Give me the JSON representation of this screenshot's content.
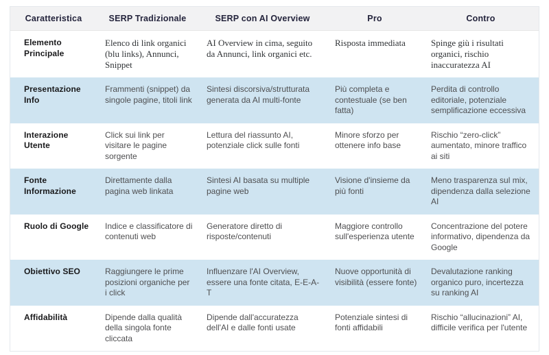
{
  "colors": {
    "header_bg": "#f2f2f3",
    "highlight_row_bg": "#cfe4f1",
    "header_text": "#24243c",
    "body_text": "#4e4e50",
    "label_text": "#19191b",
    "table_border": "#e4e8ec"
  },
  "table": {
    "headers": [
      "Caratteristica",
      "SERP Tradizionale",
      "SERP con AI Overview",
      "Pro",
      "Contro"
    ],
    "rows": [
      {
        "feature": "Elemento Principale",
        "serp_tradizionale": "Elenco di link organici (blu links), Annunci, Snippet",
        "serp_ai_overview": "AI Overview in cima, seguito da Annunci, link organici etc.",
        "pro": "Risposta immediata",
        "contro": "Spinge giù i risultati organici, rischio inaccuratezza AI"
      },
      {
        "feature": "Presentazione Info",
        "serp_tradizionale": "Frammenti (snippet) da singole pagine, titoli link",
        "serp_ai_overview": "Sintesi discorsiva/strutturata generata da AI multi-fonte",
        "pro": "Più completa e contestuale (se ben fatta)",
        "contro": "Perdita di controllo editoriale, potenziale semplificazione eccessiva"
      },
      {
        "feature": "Interazione Utente",
        "serp_tradizionale": "Click sui link per visitare le pagine sorgente",
        "serp_ai_overview": "Lettura del riassunto AI, potenziale click sulle fonti",
        "pro": "Minore sforzo per ottenere info base",
        "contro": "Rischio “zero-click” aumentato, minore traffico ai siti"
      },
      {
        "feature": "Fonte Informazione",
        "serp_tradizionale": "Direttamente dalla pagina web linkata",
        "serp_ai_overview": "Sintesi AI basata su multiple pagine web",
        "pro": "Visione d'insieme da più fonti",
        "contro": "Meno trasparenza sul mix, dipendenza dalla selezione AI"
      },
      {
        "feature": "Ruolo di Google",
        "serp_tradizionale": "Indice e classificatore di contenuti web",
        "serp_ai_overview": "Generatore diretto di risposte/contenuti",
        "pro": "Maggiore controllo sull'esperienza utente",
        "contro": "Concentrazione del potere informativo, dipendenza da Google"
      },
      {
        "feature": "Obiettivo SEO",
        "serp_tradizionale": "Raggiungere le prime posizioni organiche per i click",
        "serp_ai_overview": "Influenzare l'AI Overview, essere una fonte citata, E-E-A-T",
        "pro": "Nuove opportunità di visibilità (essere fonte)",
        "contro": "Devalutazione ranking organico puro, incertezza su ranking AI"
      },
      {
        "feature": "Affidabilità",
        "serp_tradizionale": "Dipende dalla qualità della singola fonte cliccata",
        "serp_ai_overview": "Dipende dall'accuratezza dell'AI e dalle fonti usate",
        "pro": "Potenziale sintesi di fonti affidabili",
        "contro": "Rischio “allucinazioni” AI, difficile verifica per l'utente"
      }
    ]
  }
}
